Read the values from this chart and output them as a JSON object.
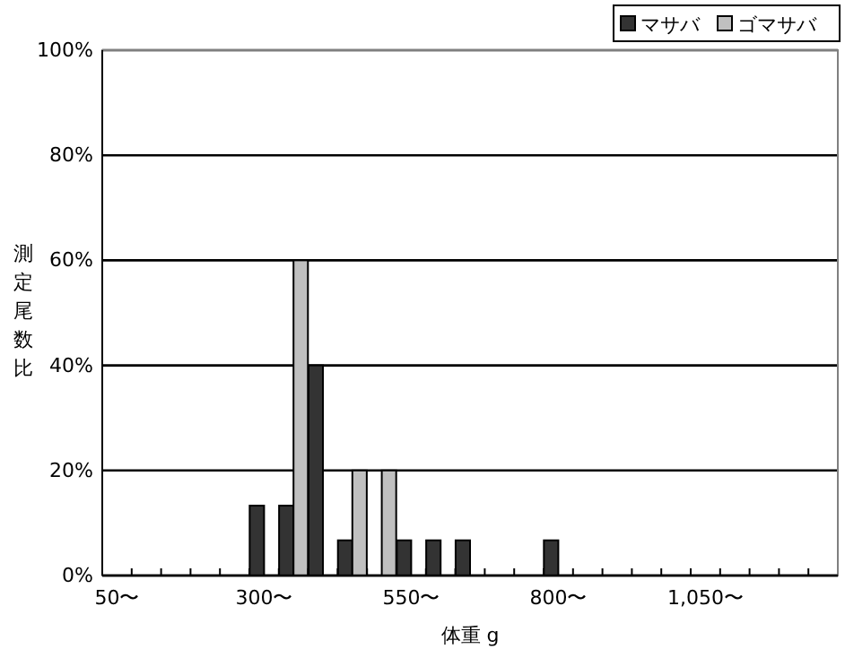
{
  "chart_data": {
    "type": "bar",
    "xlabel": "体重 g",
    "ylabel": "測定尾数比",
    "categories": [
      "50〜",
      null,
      null,
      null,
      null,
      "300〜",
      null,
      null,
      null,
      null,
      "550〜",
      null,
      null,
      null,
      null,
      "800〜",
      null,
      null,
      null,
      null,
      "1,050〜",
      null,
      null,
      null,
      null
    ],
    "series": [
      {
        "name": "マサバ",
        "color": "#333333",
        "values": [
          0,
          0,
          0,
          0,
          0,
          13.3,
          13.3,
          40,
          6.7,
          0,
          6.7,
          6.7,
          6.7,
          0,
          0,
          6.7,
          0,
          0,
          0,
          0,
          0,
          0,
          0,
          0,
          0
        ]
      },
      {
        "name": "ゴマサバ",
        "color": "#c0c0c0",
        "values": [
          0,
          0,
          0,
          0,
          0,
          0,
          60,
          0,
          20,
          20,
          0,
          0,
          0,
          0,
          0,
          0,
          0,
          0,
          0,
          0,
          0,
          0,
          0,
          0,
          0
        ]
      }
    ],
    "ylim": [
      0,
      100
    ],
    "yticks": [
      {
        "value": 0,
        "label": "0%"
      },
      {
        "value": 20,
        "label": "20%"
      },
      {
        "value": 40,
        "label": "40%"
      },
      {
        "value": 60,
        "label": "60%"
      },
      {
        "value": 80,
        "label": "80%"
      },
      {
        "value": 100,
        "label": "100%"
      }
    ],
    "grid": "y",
    "legend": "top right"
  }
}
